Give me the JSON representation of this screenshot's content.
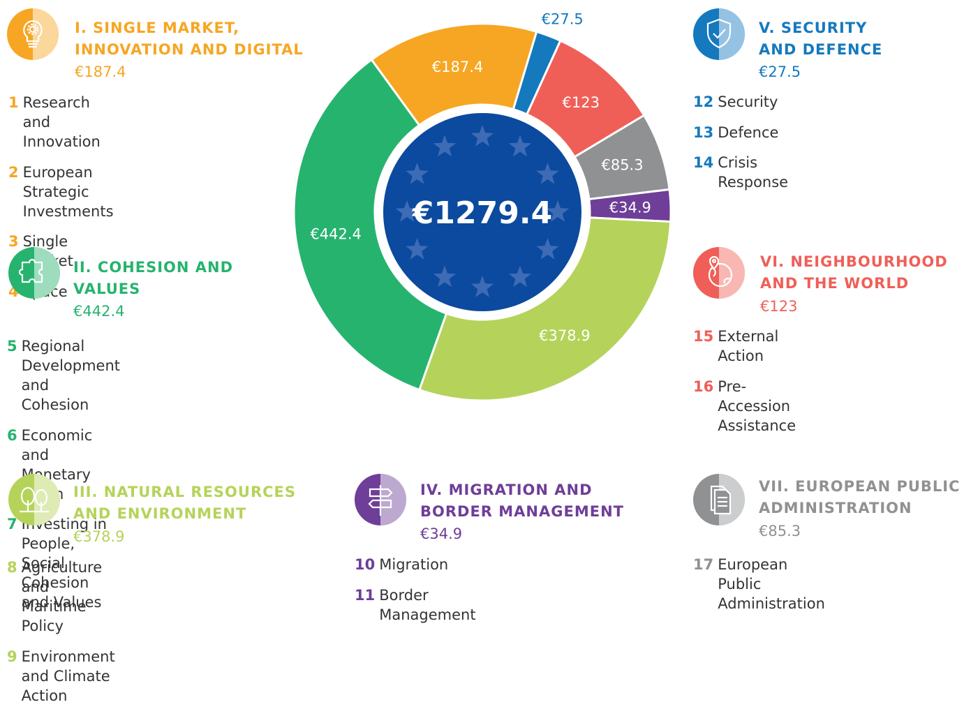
{
  "colors": {
    "single_market": "#F6A623",
    "cohesion": "#26B36E",
    "natural_resources": "#B5D35A",
    "migration": "#6E3E98",
    "security": "#1579BE",
    "neighbourhood": "#EF5F58",
    "administration": "#8F9193",
    "center": "#0B4A9E",
    "star": "#3E6BB5"
  },
  "chart_data": {
    "type": "pie",
    "total_label": "€1279.4",
    "slices": [
      {
        "heading": "I. SINGLE MARKET, INNOVATION AND DIGITAL",
        "value": 187.4,
        "label": "€187.4",
        "color": "#F6A623"
      },
      {
        "heading": "V. SECURITY AND DEFENCE",
        "value": 27.5,
        "label": "€27.5",
        "color": "#1579BE"
      },
      {
        "heading": "VI. NEIGHBOURHOOD AND THE WORLD",
        "value": 123,
        "label": "€123",
        "color": "#EF5F58"
      },
      {
        "heading": "VII. EUROPEAN PUBLIC ADMINISTRATION",
        "value": 85.3,
        "label": "€85.3",
        "color": "#8F9193"
      },
      {
        "heading": "IV. MIGRATION AND BORDER MANAGEMENT",
        "value": 34.9,
        "label": "€34.9",
        "color": "#6E3E98"
      },
      {
        "heading": "III. NATURAL RESOURCES AND ENVIRONMENT",
        "value": 378.9,
        "label": "€378.9",
        "color": "#B5D35A"
      },
      {
        "heading": "II. COHESION AND VALUES",
        "value": 442.4,
        "label": "€442.4",
        "color": "#26B36E"
      }
    ]
  },
  "blocks": {
    "single_market": {
      "icon": "lightbulb-gear-icon",
      "title_line1": "I. SINGLE MARKET,",
      "title_line2": "INNOVATION AND DIGITAL",
      "amount": "€187.4",
      "items": [
        {
          "num": "1",
          "text": "Research and Innovation"
        },
        {
          "num": "2",
          "text": "European Strategic Investments"
        },
        {
          "num": "3",
          "text": "Single Market"
        },
        {
          "num": "4",
          "text": "Space"
        }
      ]
    },
    "cohesion": {
      "icon": "puzzle-pieces-icon",
      "title_line1": "II. COHESION AND",
      "title_line2": "VALUES",
      "amount": "€442.4",
      "items": [
        {
          "num": "5",
          "text": "Regional Development and Cohesion"
        },
        {
          "num": "6",
          "text": "Economic and Monetary Union"
        },
        {
          "num": "7",
          "text": "Investing in People,\nSocial Cohesion and Values"
        }
      ]
    },
    "natural_resources": {
      "icon": "trees-icon",
      "title_line1": "III. NATURAL RESOURCES",
      "title_line2": "AND ENVIRONMENT",
      "amount": "€378.9",
      "items": [
        {
          "num": "8",
          "text": "Agriculture and Maritime Policy"
        },
        {
          "num": "9",
          "text": "Environment and Climate Action"
        }
      ]
    },
    "migration": {
      "icon": "signpost-icon",
      "title_line1": "IV. MIGRATION AND",
      "title_line2": "BORDER MANAGEMENT",
      "amount": "€34.9",
      "items": [
        {
          "num": "10",
          "text": "Migration"
        },
        {
          "num": "11",
          "text": "Border Management"
        }
      ]
    },
    "security": {
      "icon": "shield-check-icon",
      "title_line1": "V. SECURITY",
      "title_line2": "AND DEFENCE",
      "amount": "€27.5",
      "items": [
        {
          "num": "12",
          "text": "Security"
        },
        {
          "num": "13",
          "text": "Defence"
        },
        {
          "num": "14",
          "text": "Crisis Response"
        }
      ]
    },
    "neighbourhood": {
      "icon": "globe-pin-icon",
      "title_line1": "VI. NEIGHBOURHOOD",
      "title_line2": "AND THE WORLD",
      "amount": "€123",
      "items": [
        {
          "num": "15",
          "text": "External Action"
        },
        {
          "num": "16",
          "text": "Pre-Accession Assistance"
        }
      ]
    },
    "administration": {
      "icon": "documents-icon",
      "title_line1": "VII. EUROPEAN PUBLIC",
      "title_line2": "ADMINISTRATION",
      "amount": "€85.3",
      "items": [
        {
          "num": "17",
          "text": "European Public Administration"
        }
      ]
    }
  }
}
